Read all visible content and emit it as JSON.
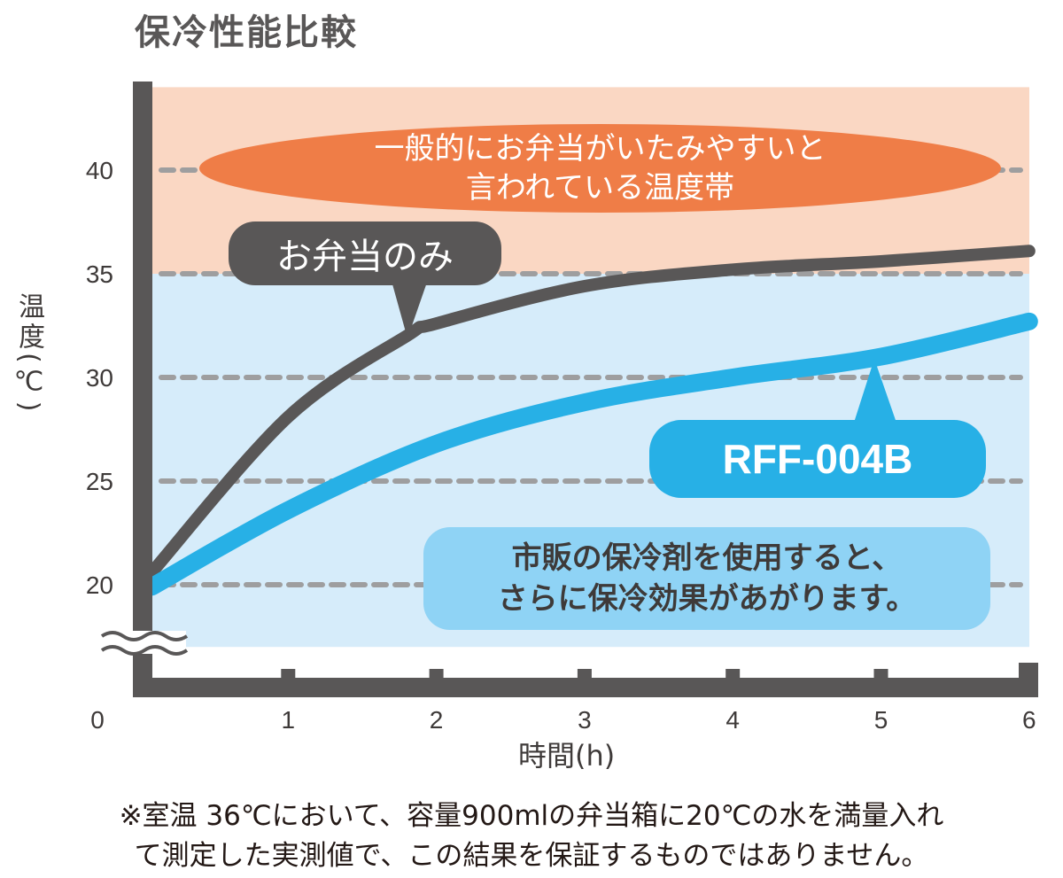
{
  "chart_data": {
    "type": "line",
    "title": "保冷性能比較",
    "xlabel": "時間(h)",
    "ylabel": "温度(℃)",
    "xlim": [
      0,
      6
    ],
    "ylim": [
      17,
      44
    ],
    "x_ticks": [
      "0",
      "1",
      "2",
      "3",
      "4",
      "5",
      "6"
    ],
    "y_ticks": [
      "20",
      "25",
      "30",
      "35",
      "40"
    ],
    "y_tick_values": [
      20,
      25,
      30,
      35,
      40
    ],
    "grid": "horizontal-dashed",
    "bands": [
      {
        "label": "一般的にお弁当がいたみやすいと言われている温度帯",
        "from": 35,
        "to": 44,
        "color": "#fad7c3"
      },
      {
        "from": 17,
        "to": 35,
        "color": "#d6ecfa"
      }
    ],
    "series": [
      {
        "name": "お弁当のみ",
        "color": "#595757",
        "x": [
          0.08,
          1,
          1.8,
          2,
          3,
          4,
          5,
          6
        ],
        "y": [
          20.6,
          28.1,
          32.0,
          32.6,
          34.4,
          35.2,
          35.6,
          36.1
        ]
      },
      {
        "name": "RFF-004B",
        "color": "#27b0e6",
        "x": [
          0.08,
          1,
          2,
          3,
          4,
          5,
          6
        ],
        "y": [
          19.9,
          23.6,
          26.8,
          28.8,
          30.0,
          31.0,
          32.7
        ]
      }
    ]
  },
  "annotations": {
    "danger_zone_line1": "一般的にお弁当がいたみやすいと",
    "danger_zone_line2": "言われている温度帯",
    "series1_label": "お弁当のみ",
    "series2_label": "RFF-004B",
    "note_line1": "市販の保冷剤を使用すると、",
    "note_line2": "さらに保冷効果があがります。"
  },
  "footnote": {
    "line1": "※室温 36℃において、容量900mlの弁当箱に20℃の水を満量入れ",
    "line2": "て測定した実測値で、この結果を保証するものではありません。"
  },
  "colors": {
    "axis": "#595757",
    "orange": "#ef7d47",
    "blue": "#27b0e6",
    "lightblue": "#8fd3f5",
    "grid": "#9e9e9f"
  }
}
